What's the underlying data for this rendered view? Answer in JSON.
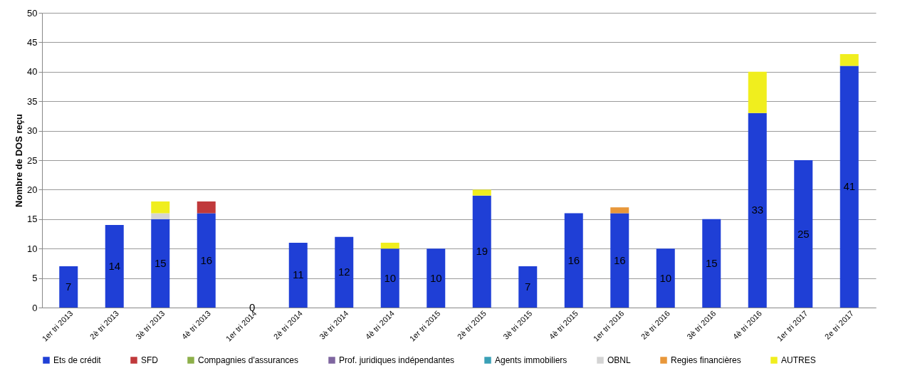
{
  "chart_data": {
    "type": "bar",
    "stacked": true,
    "ylabel": "Nombre de DOS reçu",
    "categories": [
      "1er tri 2013",
      "2è tri 2013",
      "3è tri 2013",
      "4è tri 2013",
      "1er tri 2014",
      "2è tri 2014",
      "3è tri 2014",
      "4è tri 2014",
      "1er tri 2015",
      "2è tri 2015",
      "3è tri 2015",
      "4è tri 2015",
      "1er tri 2016",
      "2è tri 2016",
      "3è tri 2016",
      "4è tri 2016",
      "1er tri 2017",
      "2e tri 2017"
    ],
    "series": [
      {
        "name": "Ets de crédit",
        "color": "#1f3fd6",
        "values": [
          7,
          14,
          15,
          16,
          0,
          11,
          12,
          10,
          10,
          19,
          7,
          16,
          16,
          10,
          15,
          33,
          25,
          41
        ],
        "value_labels": [
          "7",
          "14",
          "15",
          "16",
          "0",
          "11",
          "12",
          "10",
          "10",
          "19",
          "7",
          "16",
          "16",
          "10",
          "15",
          "33",
          "25",
          "41"
        ]
      },
      {
        "name": "SFD",
        "color": "#c0393b",
        "values": [
          null,
          null,
          null,
          2,
          null,
          null,
          null,
          null,
          null,
          null,
          null,
          null,
          null,
          null,
          null,
          null,
          null,
          null
        ]
      },
      {
        "name": "Compagnies d'assurances",
        "color": "#8db04a",
        "values": [
          null,
          null,
          null,
          null,
          null,
          null,
          null,
          null,
          null,
          null,
          null,
          null,
          null,
          null,
          null,
          null,
          null,
          null
        ]
      },
      {
        "name": "Prof. juridiques indépendantes",
        "color": "#7f66a0",
        "values": [
          null,
          null,
          null,
          null,
          null,
          null,
          null,
          null,
          null,
          null,
          null,
          null,
          null,
          null,
          null,
          null,
          null,
          null
        ]
      },
      {
        "name": "Agents immobiliers",
        "color": "#3aa0b6",
        "values": [
          null,
          null,
          null,
          null,
          null,
          null,
          null,
          null,
          null,
          null,
          null,
          null,
          null,
          null,
          null,
          null,
          null,
          null
        ]
      },
      {
        "name": "OBNL",
        "color": "#d4d4d4",
        "values": [
          null,
          null,
          1,
          null,
          null,
          null,
          null,
          null,
          null,
          null,
          null,
          null,
          null,
          null,
          null,
          null,
          null,
          null
        ]
      },
      {
        "name": "Regies financières",
        "color": "#e8973a",
        "values": [
          null,
          null,
          null,
          null,
          null,
          null,
          null,
          null,
          null,
          null,
          null,
          null,
          1,
          null,
          null,
          null,
          null,
          null
        ]
      },
      {
        "name": "AUTRES",
        "color": "#f0ee1e",
        "values": [
          null,
          null,
          2,
          null,
          null,
          null,
          null,
          1,
          null,
          1,
          null,
          null,
          null,
          null,
          null,
          7,
          null,
          2
        ]
      }
    ],
    "ylim": [
      0,
      50
    ],
    "yticks": [
      0,
      5,
      10,
      15,
      20,
      25,
      30,
      35,
      40,
      45,
      50
    ],
    "grid": "y",
    "legend": "bottom"
  }
}
